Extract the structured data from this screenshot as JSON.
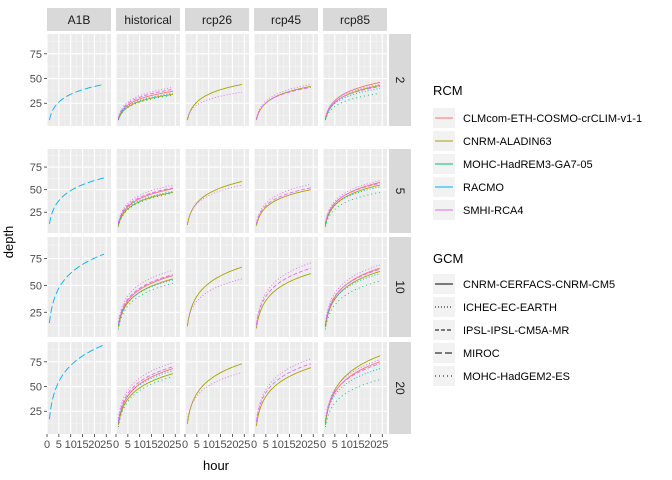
{
  "chart_data": {
    "type": "line",
    "xlabel": "hour",
    "ylabel": "depth",
    "xlim": [
      0,
      27
    ],
    "ylim": [
      2,
      95
    ],
    "x_ticks": [
      0,
      5,
      10,
      15,
      20,
      25
    ],
    "x_tick_labels": [
      "0",
      "5",
      "10",
      "15",
      "20",
      "25"
    ],
    "y_ticks": [
      25,
      50,
      75
    ],
    "y_tick_labels": [
      "25",
      "50",
      "75"
    ],
    "columns": [
      "A1B",
      "historical",
      "rcp26",
      "rcp45",
      "rcp85"
    ],
    "rows": [
      "2",
      "5",
      "10",
      "20"
    ],
    "legend_rcm": {
      "title": "RCM",
      "entries": [
        {
          "name": "CLMcom-ETH-COSMO-crCLIM-v1-1",
          "color": "#F8766D"
        },
        {
          "name": "CNRM-ALADIN63",
          "color": "#A3A500"
        },
        {
          "name": "MOHC-HadREM3-GA7-05",
          "color": "#00BF7D"
        },
        {
          "name": "RACMO",
          "color": "#00B0F6"
        },
        {
          "name": "SMHI-RCA4",
          "color": "#E76BF3"
        }
      ]
    },
    "legend_gcm": {
      "title": "GCM",
      "entries": [
        {
          "name": "CNRM-CERFACS-CNRM-CM5",
          "dash": "none"
        },
        {
          "name": "ICHEC-EC-EARTH",
          "dash": "1,2"
        },
        {
          "name": "IPSL-IPSL-CM5A-MR",
          "dash": "4,2"
        },
        {
          "name": "MIROC",
          "dash": "7,3"
        },
        {
          "name": "MOHC-HadGEM2-ES",
          "dash": "1,3"
        }
      ]
    },
    "series": [
      {
        "col": "A1B",
        "row": "2",
        "rcm": "RACMO",
        "gcm": "MIROC",
        "start": 8,
        "end": 44
      },
      {
        "col": "A1B",
        "row": "5",
        "rcm": "RACMO",
        "gcm": "MIROC",
        "start": 12,
        "end": 63
      },
      {
        "col": "A1B",
        "row": "10",
        "rcm": "RACMO",
        "gcm": "MIROC",
        "start": 15,
        "end": 79
      },
      {
        "col": "A1B",
        "row": "20",
        "rcm": "RACMO",
        "gcm": "MIROC",
        "start": 17,
        "end": 92
      },
      {
        "col": "historical",
        "row": "2",
        "rcm": "CLMcom-ETH-COSMO-crCLIM-v1-1",
        "gcm": "CNRM-CERFACS-CNRM-CM5",
        "start": 9,
        "end": 37
      },
      {
        "col": "historical",
        "row": "2",
        "rcm": "CNRM-ALADIN63",
        "gcm": "CNRM-CERFACS-CNRM-CM5",
        "start": 8,
        "end": 34
      },
      {
        "col": "historical",
        "row": "2",
        "rcm": "MOHC-HadREM3-GA7-05",
        "gcm": "MOHC-HadGEM2-ES",
        "start": 8,
        "end": 33
      },
      {
        "col": "historical",
        "row": "2",
        "rcm": "RACMO",
        "gcm": "ICHEC-EC-EARTH",
        "start": 9,
        "end": 35
      },
      {
        "col": "historical",
        "row": "2",
        "rcm": "SMHI-RCA4",
        "gcm": "ICHEC-EC-EARTH",
        "start": 11,
        "end": 41
      },
      {
        "col": "historical",
        "row": "2",
        "rcm": "SMHI-RCA4",
        "gcm": "IPSL-IPSL-CM5A-MR",
        "start": 10,
        "end": 39
      },
      {
        "col": "historical",
        "row": "5",
        "rcm": "CLMcom-ETH-COSMO-crCLIM-v1-1",
        "gcm": "CNRM-CERFACS-CNRM-CM5",
        "start": 11,
        "end": 51
      },
      {
        "col": "historical",
        "row": "5",
        "rcm": "CNRM-ALADIN63",
        "gcm": "CNRM-CERFACS-CNRM-CM5",
        "start": 10,
        "end": 47
      },
      {
        "col": "historical",
        "row": "5",
        "rcm": "MOHC-HadREM3-GA7-05",
        "gcm": "MOHC-HadGEM2-ES",
        "start": 9,
        "end": 46
      },
      {
        "col": "historical",
        "row": "5",
        "rcm": "RACMO",
        "gcm": "ICHEC-EC-EARTH",
        "start": 12,
        "end": 48
      },
      {
        "col": "historical",
        "row": "5",
        "rcm": "SMHI-RCA4",
        "gcm": "ICHEC-EC-EARTH",
        "start": 14,
        "end": 55
      },
      {
        "col": "historical",
        "row": "5",
        "rcm": "SMHI-RCA4",
        "gcm": "IPSL-IPSL-CM5A-MR",
        "start": 13,
        "end": 52
      },
      {
        "col": "historical",
        "row": "10",
        "rcm": "CLMcom-ETH-COSMO-crCLIM-v1-1",
        "gcm": "CNRM-CERFACS-CNRM-CM5",
        "start": 12,
        "end": 59
      },
      {
        "col": "historical",
        "row": "10",
        "rcm": "CNRM-ALADIN63",
        "gcm": "CNRM-CERFACS-CNRM-CM5",
        "start": 11,
        "end": 56
      },
      {
        "col": "historical",
        "row": "10",
        "rcm": "MOHC-HadREM3-GA7-05",
        "gcm": "MOHC-HadGEM2-ES",
        "start": 9,
        "end": 52
      },
      {
        "col": "historical",
        "row": "10",
        "rcm": "RACMO",
        "gcm": "ICHEC-EC-EARTH",
        "start": 13,
        "end": 55
      },
      {
        "col": "historical",
        "row": "10",
        "rcm": "SMHI-RCA4",
        "gcm": "ICHEC-EC-EARTH",
        "start": 16,
        "end": 64
      },
      {
        "col": "historical",
        "row": "10",
        "rcm": "SMHI-RCA4",
        "gcm": "IPSL-IPSL-CM5A-MR",
        "start": 14,
        "end": 60
      },
      {
        "col": "historical",
        "row": "20",
        "rcm": "CLMcom-ETH-COSMO-crCLIM-v1-1",
        "gcm": "CNRM-CERFACS-CNRM-CM5",
        "start": 12,
        "end": 68
      },
      {
        "col": "historical",
        "row": "20",
        "rcm": "CNRM-ALADIN63",
        "gcm": "CNRM-CERFACS-CNRM-CM5",
        "start": 11,
        "end": 63
      },
      {
        "col": "historical",
        "row": "20",
        "rcm": "MOHC-HadREM3-GA7-05",
        "gcm": "MOHC-HadGEM2-ES",
        "start": 9,
        "end": 60
      },
      {
        "col": "historical",
        "row": "20",
        "rcm": "RACMO",
        "gcm": "ICHEC-EC-EARTH",
        "start": 14,
        "end": 66
      },
      {
        "col": "historical",
        "row": "20",
        "rcm": "SMHI-RCA4",
        "gcm": "ICHEC-EC-EARTH",
        "start": 18,
        "end": 74
      },
      {
        "col": "historical",
        "row": "20",
        "rcm": "SMHI-RCA4",
        "gcm": "IPSL-IPSL-CM5A-MR",
        "start": 15,
        "end": 70
      },
      {
        "col": "rcp26",
        "row": "2",
        "rcm": "CNRM-ALADIN63",
        "gcm": "CNRM-CERFACS-CNRM-CM5",
        "start": 8,
        "end": 44
      },
      {
        "col": "rcp26",
        "row": "2",
        "rcm": "SMHI-RCA4",
        "gcm": "ICHEC-EC-EARTH",
        "start": 10,
        "end": 36
      },
      {
        "col": "rcp26",
        "row": "5",
        "rcm": "CNRM-ALADIN63",
        "gcm": "CNRM-CERFACS-CNRM-CM5",
        "start": 11,
        "end": 59
      },
      {
        "col": "rcp26",
        "row": "5",
        "rcm": "SMHI-RCA4",
        "gcm": "ICHEC-EC-EARTH",
        "start": 13,
        "end": 55
      },
      {
        "col": "rcp26",
        "row": "10",
        "rcm": "CNRM-ALADIN63",
        "gcm": "CNRM-CERFACS-CNRM-CM5",
        "start": 12,
        "end": 67
      },
      {
        "col": "rcp26",
        "row": "10",
        "rcm": "SMHI-RCA4",
        "gcm": "ICHEC-EC-EARTH",
        "start": 14,
        "end": 56
      },
      {
        "col": "rcp26",
        "row": "20",
        "rcm": "CNRM-ALADIN63",
        "gcm": "CNRM-CERFACS-CNRM-CM5",
        "start": 12,
        "end": 73
      },
      {
        "col": "rcp26",
        "row": "20",
        "rcm": "SMHI-RCA4",
        "gcm": "ICHEC-EC-EARTH",
        "start": 16,
        "end": 64
      },
      {
        "col": "rcp45",
        "row": "2",
        "rcm": "CNRM-ALADIN63",
        "gcm": "CNRM-CERFACS-CNRM-CM5",
        "start": 8,
        "end": 42
      },
      {
        "col": "rcp45",
        "row": "2",
        "rcm": "SMHI-RCA4",
        "gcm": "ICHEC-EC-EARTH",
        "start": 10,
        "end": 44
      },
      {
        "col": "rcp45",
        "row": "2",
        "rcm": "SMHI-RCA4",
        "gcm": "IPSL-IPSL-CM5A-MR",
        "start": 9,
        "end": 41
      },
      {
        "col": "rcp45",
        "row": "5",
        "rcm": "CNRM-ALADIN63",
        "gcm": "CNRM-CERFACS-CNRM-CM5",
        "start": 10,
        "end": 50
      },
      {
        "col": "rcp45",
        "row": "5",
        "rcm": "SMHI-RCA4",
        "gcm": "ICHEC-EC-EARTH",
        "start": 13,
        "end": 56
      },
      {
        "col": "rcp45",
        "row": "5",
        "rcm": "SMHI-RCA4",
        "gcm": "IPSL-IPSL-CM5A-MR",
        "start": 12,
        "end": 52
      },
      {
        "col": "rcp45",
        "row": "10",
        "rcm": "CNRM-ALADIN63",
        "gcm": "CNRM-CERFACS-CNRM-CM5",
        "start": 10,
        "end": 61
      },
      {
        "col": "rcp45",
        "row": "10",
        "rcm": "SMHI-RCA4",
        "gcm": "ICHEC-EC-EARTH",
        "start": 14,
        "end": 71
      },
      {
        "col": "rcp45",
        "row": "10",
        "rcm": "SMHI-RCA4",
        "gcm": "IPSL-IPSL-CM5A-MR",
        "start": 13,
        "end": 66
      },
      {
        "col": "rcp45",
        "row": "20",
        "rcm": "CNRM-ALADIN63",
        "gcm": "CNRM-CERFACS-CNRM-CM5",
        "start": 10,
        "end": 69
      },
      {
        "col": "rcp45",
        "row": "20",
        "rcm": "SMHI-RCA4",
        "gcm": "ICHEC-EC-EARTH",
        "start": 15,
        "end": 78
      },
      {
        "col": "rcp45",
        "row": "20",
        "rcm": "SMHI-RCA4",
        "gcm": "IPSL-IPSL-CM5A-MR",
        "start": 14,
        "end": 73
      },
      {
        "col": "rcp85",
        "row": "2",
        "rcm": "CLMcom-ETH-COSMO-crCLIM-v1-1",
        "gcm": "CNRM-CERFACS-CNRM-CM5",
        "start": 9,
        "end": 46
      },
      {
        "col": "rcp85",
        "row": "2",
        "rcm": "CNRM-ALADIN63",
        "gcm": "CNRM-CERFACS-CNRM-CM5",
        "start": 8,
        "end": 43
      },
      {
        "col": "rcp85",
        "row": "2",
        "rcm": "MOHC-HadREM3-GA7-05",
        "gcm": "MOHC-HadGEM2-ES",
        "start": 8,
        "end": 35
      },
      {
        "col": "rcp85",
        "row": "2",
        "rcm": "RACMO",
        "gcm": "ICHEC-EC-EARTH",
        "start": 9,
        "end": 40
      },
      {
        "col": "rcp85",
        "row": "2",
        "rcm": "SMHI-RCA4",
        "gcm": "ICHEC-EC-EARTH",
        "start": 11,
        "end": 44
      },
      {
        "col": "rcp85",
        "row": "2",
        "rcm": "SMHI-RCA4",
        "gcm": "IPSL-IPSL-CM5A-MR",
        "start": 10,
        "end": 42
      },
      {
        "col": "rcp85",
        "row": "5",
        "rcm": "CLMcom-ETH-COSMO-crCLIM-v1-1",
        "gcm": "CNRM-CERFACS-CNRM-CM5",
        "start": 11,
        "end": 58
      },
      {
        "col": "rcp85",
        "row": "5",
        "rcm": "CNRM-ALADIN63",
        "gcm": "CNRM-CERFACS-CNRM-CM5",
        "start": 10,
        "end": 55
      },
      {
        "col": "rcp85",
        "row": "5",
        "rcm": "MOHC-HadREM3-GA7-05",
        "gcm": "MOHC-HadGEM2-ES",
        "start": 9,
        "end": 47
      },
      {
        "col": "rcp85",
        "row": "5",
        "rcm": "RACMO",
        "gcm": "ICHEC-EC-EARTH",
        "start": 12,
        "end": 53
      },
      {
        "col": "rcp85",
        "row": "5",
        "rcm": "SMHI-RCA4",
        "gcm": "ICHEC-EC-EARTH",
        "start": 14,
        "end": 60
      },
      {
        "col": "rcp85",
        "row": "5",
        "rcm": "SMHI-RCA4",
        "gcm": "IPSL-IPSL-CM5A-MR",
        "start": 13,
        "end": 57
      },
      {
        "col": "rcp85",
        "row": "10",
        "rcm": "CLMcom-ETH-COSMO-crCLIM-v1-1",
        "gcm": "CNRM-CERFACS-CNRM-CM5",
        "start": 12,
        "end": 66
      },
      {
        "col": "rcp85",
        "row": "10",
        "rcm": "CNRM-ALADIN63",
        "gcm": "CNRM-CERFACS-CNRM-CM5",
        "start": 11,
        "end": 63
      },
      {
        "col": "rcp85",
        "row": "10",
        "rcm": "MOHC-HadREM3-GA7-05",
        "gcm": "MOHC-HadGEM2-ES",
        "start": 9,
        "end": 54
      },
      {
        "col": "rcp85",
        "row": "10",
        "rcm": "RACMO",
        "gcm": "ICHEC-EC-EARTH",
        "start": 13,
        "end": 61
      },
      {
        "col": "rcp85",
        "row": "10",
        "rcm": "SMHI-RCA4",
        "gcm": "ICHEC-EC-EARTH",
        "start": 16,
        "end": 69
      },
      {
        "col": "rcp85",
        "row": "10",
        "rcm": "SMHI-RCA4",
        "gcm": "IPSL-IPSL-CM5A-MR",
        "start": 14,
        "end": 65
      },
      {
        "col": "rcp85",
        "row": "20",
        "rcm": "CLMcom-ETH-COSMO-crCLIM-v1-1",
        "gcm": "CNRM-CERFACS-CNRM-CM5",
        "start": 12,
        "end": 75
      },
      {
        "col": "rcp85",
        "row": "20",
        "rcm": "CNRM-ALADIN63",
        "gcm": "CNRM-CERFACS-CNRM-CM5",
        "start": 11,
        "end": 81
      },
      {
        "col": "rcp85",
        "row": "20",
        "rcm": "MOHC-HadREM3-GA7-05",
        "gcm": "MOHC-HadGEM2-ES",
        "start": 9,
        "end": 57
      },
      {
        "col": "rcp85",
        "row": "20",
        "rcm": "RACMO",
        "gcm": "ICHEC-EC-EARTH",
        "start": 14,
        "end": 68
      },
      {
        "col": "rcp85",
        "row": "20",
        "rcm": "SMHI-RCA4",
        "gcm": "ICHEC-EC-EARTH",
        "start": 17,
        "end": 77
      },
      {
        "col": "rcp85",
        "row": "20",
        "rcm": "SMHI-RCA4",
        "gcm": "IPSL-IPSL-CM5A-MR",
        "start": 15,
        "end": 73
      }
    ]
  }
}
